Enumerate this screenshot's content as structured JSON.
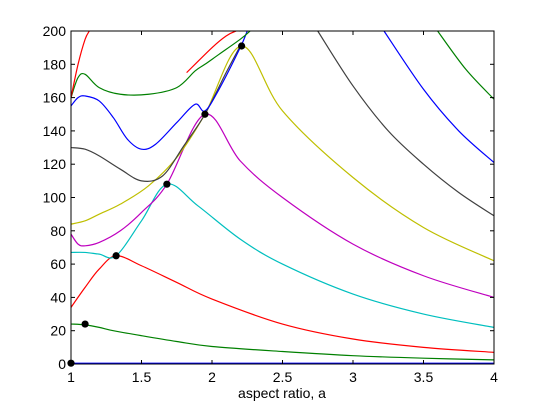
{
  "chart_data": {
    "type": "line",
    "title": "",
    "xlabel": "aspect ratio, a",
    "ylabel": "",
    "xlim": [
      1,
      4
    ],
    "ylim": [
      0,
      200
    ],
    "xticks": [
      "1",
      "1.5",
      "2",
      "2.5",
      "3",
      "3.5",
      "4"
    ],
    "yticks": [
      "0",
      "20",
      "40",
      "60",
      "80",
      "100",
      "120",
      "140",
      "160",
      "180",
      "200"
    ],
    "grid": false,
    "legend": "none",
    "series": [
      {
        "color": "#0000ff",
        "x": [
          1,
          4
        ],
        "y": [
          0.5,
          0.5
        ]
      },
      {
        "color": "#008000",
        "x": [
          1,
          1.1,
          1.2,
          1.3,
          1.5,
          1.75,
          2,
          2.5,
          3,
          3.5,
          4
        ],
        "y": [
          24,
          23.5,
          22,
          20,
          17,
          13.5,
          10.5,
          7.5,
          5,
          3.5,
          2.5
        ]
      },
      {
        "color": "#ff0000",
        "x": [
          1,
          1.1,
          1.2,
          1.32,
          1.5,
          1.75,
          2,
          2.5,
          3,
          3.5,
          4
        ],
        "y": [
          34,
          46,
          57,
          65,
          59,
          49,
          39,
          24,
          15,
          10,
          7
        ]
      },
      {
        "color": "#00bfbf",
        "x": [
          1,
          1.1,
          1.2,
          1.32,
          1.5,
          1.68,
          1.9,
          2.2,
          2.5,
          3,
          3.5,
          4
        ],
        "y": [
          67,
          67,
          66,
          65,
          86,
          108,
          95,
          75,
          60,
          42,
          30,
          22
        ]
      },
      {
        "color": "#bf00bf",
        "x": [
          1,
          1.05,
          1.1,
          1.2,
          1.35,
          1.5,
          1.68,
          1.95,
          2.2,
          2.5,
          3,
          3.5,
          4
        ],
        "y": [
          78,
          72,
          71,
          73,
          80,
          91,
          108,
          150,
          122,
          100,
          72,
          53,
          40
        ]
      },
      {
        "color": "#bfbf00",
        "x": [
          1,
          1.1,
          1.2,
          1.35,
          1.55,
          1.75,
          1.95,
          2.21,
          2.5,
          3,
          3.5,
          4
        ],
        "y": [
          84,
          86,
          90,
          96,
          107,
          124,
          150,
          191,
          152,
          112,
          82,
          62
        ]
      },
      {
        "color": "#404040",
        "x": [
          1,
          1.1,
          1.2,
          1.35,
          1.5,
          1.65,
          1.8,
          1.95,
          2.1,
          2.2
        ],
        "y": [
          130,
          129,
          125,
          117,
          110,
          113,
          131,
          150,
          175,
          191
        ]
      },
      {
        "color": "#404040",
        "x": [
          2.75,
          3,
          3.25,
          3.5,
          3.75,
          4
        ],
        "y": [
          200,
          167,
          140,
          120,
          103,
          89
        ]
      },
      {
        "color": "#0000ff",
        "x": [
          1,
          1.05,
          1.1,
          1.2,
          1.3,
          1.4,
          1.5,
          1.6,
          1.75,
          1.88,
          1.95,
          2.05,
          2.2,
          2.25
        ],
        "y": [
          155,
          160,
          161,
          158,
          148,
          135,
          129,
          132,
          145,
          156,
          152,
          165,
          190,
          200
        ]
      },
      {
        "color": "#0000ff",
        "x": [
          3.22,
          3.5,
          3.75,
          4
        ],
        "y": [
          200,
          165,
          140,
          121
        ]
      },
      {
        "color": "#008000",
        "x": [
          1,
          1.05,
          1.1,
          1.2,
          1.35,
          1.55,
          1.75,
          1.88,
          1.95,
          2.05,
          2.2,
          2.27
        ],
        "y": [
          160,
          172,
          174,
          166,
          162,
          162,
          166,
          176,
          180,
          186,
          195,
          200
        ]
      },
      {
        "color": "#008000",
        "x": [
          3.6,
          3.8,
          4
        ],
        "y": [
          200,
          177,
          159
        ]
      },
      {
        "color": "#ff0000",
        "x": [
          1,
          1.05,
          1.1,
          1.13
        ],
        "y": [
          160,
          180,
          195,
          200
        ]
      },
      {
        "color": "#ff0000",
        "x": [
          1.82,
          2,
          2.1,
          2.17,
          2.2
        ],
        "y": [
          175,
          190,
          197,
          200,
          200
        ]
      }
    ],
    "points": {
      "x": [
        1,
        1.1,
        1.32,
        1.68,
        1.95,
        2.21
      ],
      "y": [
        0.5,
        24,
        65,
        108,
        150,
        191
      ]
    }
  }
}
